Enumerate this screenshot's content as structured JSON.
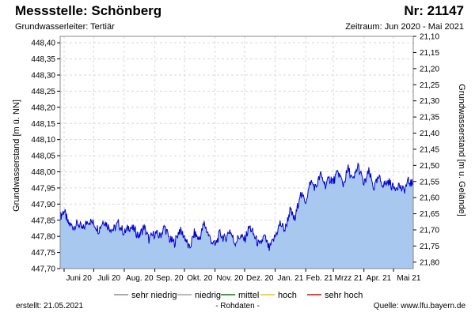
{
  "header": {
    "title_left": "Messstelle: Schönberg",
    "title_right": "Nr: 21147",
    "subtitle_left": "Grundwasserleiter: Tertiär",
    "subtitle_right": "Zeitraum: Jun 2020 - Mai 2021"
  },
  "footer": {
    "created": "erstellt:  21.05.2021",
    "center": "- Rohdaten -",
    "source": "Quelle: www.lfu.bayern.de"
  },
  "colors": {
    "line": "#0000cc",
    "fill": "#a8c8ef",
    "grid": "#d8d8d8",
    "frame": "#888888",
    "legend_sehr_niedrig": "#8888aa",
    "legend_niedrig": "#a0a0a0",
    "legend_mittel": "#008000",
    "legend_hoch": "#e6c800",
    "legend_sehr_hoch": "#e00000"
  },
  "chart_data": {
    "type": "area",
    "ylabel_left": "Grundwasserstand [m ü. NN]",
    "ylabel_right": "Grundwasserstand [m u. Gelände]",
    "ylim_left": [
      447.7,
      448.42
    ],
    "ylim_right": [
      21.1,
      21.82
    ],
    "left_ticks": [
      "447,70",
      "447,75",
      "447,80",
      "447,85",
      "447,90",
      "447,95",
      "448,00",
      "448,05",
      "448,10",
      "448,15",
      "448,20",
      "448,25",
      "448,30",
      "448,35",
      "448,40"
    ],
    "right_ticks": [
      "21,10",
      "21,15",
      "21,20",
      "21,25",
      "21,30",
      "21,35",
      "21,40",
      "21,45",
      "21,50",
      "21,55",
      "21,60",
      "21,65",
      "21,70",
      "21,75",
      "21,80"
    ],
    "x_labels": [
      "Juni 20",
      "Juli 20",
      "Aug. 20",
      "Sep. 20",
      "Okt. 20",
      "Nov. 20",
      "Dez. 20",
      "Jan. 21",
      "Feb. 21",
      "Mrzz 21",
      "Apr. 21",
      "Mai 21"
    ],
    "xlim": [
      "2020-05-28",
      "2021-05-21"
    ],
    "grid": true,
    "series": [
      {
        "x": [
          "2020-05-28",
          "2020-06-01",
          "2020-06-05",
          "2020-06-10",
          "2020-06-15",
          "2020-06-20",
          "2020-06-25",
          "2020-07-01",
          "2020-07-06",
          "2020-07-11",
          "2020-07-16",
          "2020-07-21",
          "2020-07-26",
          "2020-08-01",
          "2020-08-06",
          "2020-08-11",
          "2020-08-16",
          "2020-08-21",
          "2020-08-26",
          "2020-09-01",
          "2020-09-06",
          "2020-09-11",
          "2020-09-16",
          "2020-09-21",
          "2020-09-26",
          "2020-10-01",
          "2020-10-06",
          "2020-10-11",
          "2020-10-16",
          "2020-10-21",
          "2020-10-26",
          "2020-11-01",
          "2020-11-06",
          "2020-11-11",
          "2020-11-16",
          "2020-11-21",
          "2020-11-26",
          "2020-12-01",
          "2020-12-06",
          "2020-12-11",
          "2020-12-16",
          "2020-12-21",
          "2020-12-26",
          "2021-01-01",
          "2021-01-06",
          "2021-01-11",
          "2021-01-16",
          "2021-01-21",
          "2021-01-26",
          "2021-02-01",
          "2021-02-06",
          "2021-02-11",
          "2021-02-16",
          "2021-02-21",
          "2021-02-26",
          "2021-03-01",
          "2021-03-06",
          "2021-03-11",
          "2021-03-16",
          "2021-03-21",
          "2021-03-26",
          "2021-04-01",
          "2021-04-06",
          "2021-04-11",
          "2021-04-16",
          "2021-04-21",
          "2021-04-26",
          "2021-05-01",
          "2021-05-06",
          "2021-05-11",
          "2021-05-16",
          "2021-05-21"
        ],
        "values": [
          447.86,
          447.88,
          447.84,
          447.83,
          447.84,
          447.82,
          447.85,
          447.84,
          447.82,
          447.85,
          447.83,
          447.82,
          447.84,
          447.81,
          447.83,
          447.82,
          447.8,
          447.83,
          447.79,
          447.81,
          447.8,
          447.83,
          447.79,
          447.78,
          447.82,
          447.8,
          447.76,
          447.81,
          447.79,
          447.84,
          447.8,
          447.77,
          447.81,
          447.79,
          447.82,
          447.78,
          447.8,
          447.79,
          447.83,
          447.8,
          447.77,
          447.8,
          447.76,
          447.8,
          447.84,
          447.82,
          447.88,
          447.85,
          447.93,
          447.91,
          447.97,
          447.95,
          447.99,
          447.96,
          447.98,
          447.97,
          448.0,
          447.96,
          448.01,
          447.97,
          448.02,
          447.96,
          448.0,
          447.95,
          447.98,
          447.96,
          447.97,
          447.95,
          447.96,
          447.94,
          447.97,
          447.96
        ]
      }
    ]
  },
  "legend": {
    "items": [
      {
        "label": "sehr niedrig",
        "color": "#8888aa"
      },
      {
        "label": "niedrig",
        "color": "#a0a0a0"
      },
      {
        "label": "mittel",
        "color": "#008000"
      },
      {
        "label": "hoch",
        "color": "#e6c800"
      },
      {
        "label": "sehr hoch",
        "color": "#e00000"
      }
    ]
  }
}
